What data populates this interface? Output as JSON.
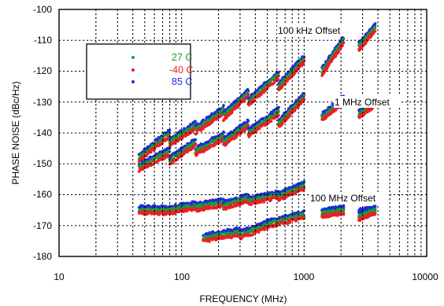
{
  "chart_data": {
    "type": "scatter",
    "title": "",
    "xlabel": "FREQUENCY (MHz)",
    "ylabel": "PHASE NOISE (dBc/Hz)",
    "xscale": "log",
    "xlim": [
      10,
      10000
    ],
    "ylim": [
      -180,
      -100
    ],
    "x_ticks": [
      "10",
      "100",
      "1000",
      "10000"
    ],
    "y_ticks": [
      "-100",
      "-110",
      "-120",
      "-130",
      "-140",
      "-150",
      "-160",
      "-170",
      "-180"
    ],
    "grid": true,
    "legend_position": "upper-left",
    "series": [
      {
        "name": "27 C",
        "color": "#1f9a2e",
        "offset_db": 0
      },
      {
        "name": "-40 C",
        "color": "#e8202a",
        "offset_db": -1
      },
      {
        "name": "85 C",
        "color": "#1c2fd6",
        "offset_db": 1
      }
    ],
    "curves": [
      {
        "label": "100 kHz Offset",
        "segments": [
          [
            45,
            80,
            -148,
            -140
          ],
          [
            80,
            130,
            -143,
            -137.5
          ],
          [
            130,
            220,
            -139,
            -132.5
          ],
          [
            220,
            350,
            -134.5,
            -127
          ],
          [
            350,
            620,
            -130,
            -121
          ],
          [
            620,
            1000,
            -125,
            -116
          ],
          [
            1400,
            2100,
            -120,
            -110
          ],
          [
            2800,
            3800,
            -112,
            -106
          ]
        ]
      },
      {
        "label": "1 MHz Offset",
        "segments": [
          [
            45,
            80,
            -151,
            -146
          ],
          [
            80,
            130,
            -149,
            -143
          ],
          [
            130,
            220,
            -146,
            -141
          ],
          [
            220,
            350,
            -143,
            -137
          ],
          [
            350,
            620,
            -140,
            -133
          ],
          [
            620,
            1000,
            -137,
            -128
          ],
          [
            1400,
            2100,
            -135,
            -129
          ],
          [
            2800,
            3800,
            -134,
            -130
          ]
        ]
      },
      {
        "label": "100 MHz Offset",
        "segments": [
          [
            45,
            80,
            -165,
            -165
          ],
          [
            80,
            130,
            -165,
            -163.5
          ],
          [
            130,
            220,
            -164,
            -162.5
          ],
          [
            220,
            350,
            -163.5,
            -161
          ],
          [
            350,
            620,
            -162,
            -160
          ],
          [
            620,
            1000,
            -160.5,
            -157
          ],
          [
            1400,
            2100,
            -166,
            -165
          ],
          [
            2800,
            3800,
            -166,
            -165
          ]
        ]
      },
      {
        "label": "",
        "segments": [
          [
            150,
            300,
            -174,
            -172
          ],
          [
            300,
            560,
            -173,
            -169
          ],
          [
            560,
            1000,
            -169,
            -166.5
          ],
          [
            1400,
            2100,
            -166,
            -165
          ],
          [
            2800,
            3800,
            -167,
            -165
          ]
        ]
      }
    ],
    "annotations": [
      "100 kHz Offset",
      "1 MHz Offset",
      "100 MHz Offset"
    ]
  }
}
